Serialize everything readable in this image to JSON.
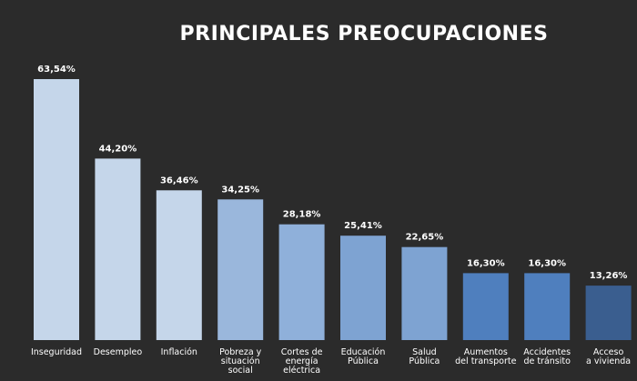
{
  "chart_data": {
    "type": "bar",
    "title": "PRINCIPALES PREOCUPACIONES",
    "xlabel": "",
    "ylabel": "",
    "categories": [
      "Inseguridad",
      "Desempleo",
      "Inflación",
      "Pobreza y situación social",
      "Cortes de energía eléctrica",
      "Educación Pública",
      "Salud Pública",
      "Aumentos del transporte",
      "Accidentes de tránsito",
      "Acceso a vivienda"
    ],
    "category_lines": [
      [
        "Inseguridad"
      ],
      [
        "Desempleo"
      ],
      [
        "Inflación"
      ],
      [
        "Pobreza y",
        "situación",
        "social"
      ],
      [
        "Cortes de",
        "energía",
        "eléctrica"
      ],
      [
        "Educación",
        "Pública"
      ],
      [
        "Salud",
        "Pública"
      ],
      [
        "Aumentos",
        "del transporte"
      ],
      [
        "Accidentes",
        "de tránsito"
      ],
      [
        "Acceso",
        "a vivienda"
      ]
    ],
    "values": [
      63.54,
      44.2,
      36.46,
      34.25,
      28.18,
      25.41,
      22.65,
      16.3,
      16.3,
      13.26
    ],
    "value_labels": [
      "63,54%",
      "44,20%",
      "36,46%",
      "34,25%",
      "28,18%",
      "25,41%",
      "22,65%",
      "16,30%",
      "16,30%",
      "13,26%"
    ],
    "colors": [
      "#c5d6ea",
      "#c5d6ea",
      "#c5d6ea",
      "#9ab7dc",
      "#8fb0da",
      "#7ea3d2",
      "#7ea3d2",
      "#4f7fbe",
      "#4f7fbe",
      "#3a5e8f"
    ],
    "ylim": [
      0,
      70
    ],
    "grid": false,
    "legend": "none",
    "background": "#2b2b2b"
  }
}
